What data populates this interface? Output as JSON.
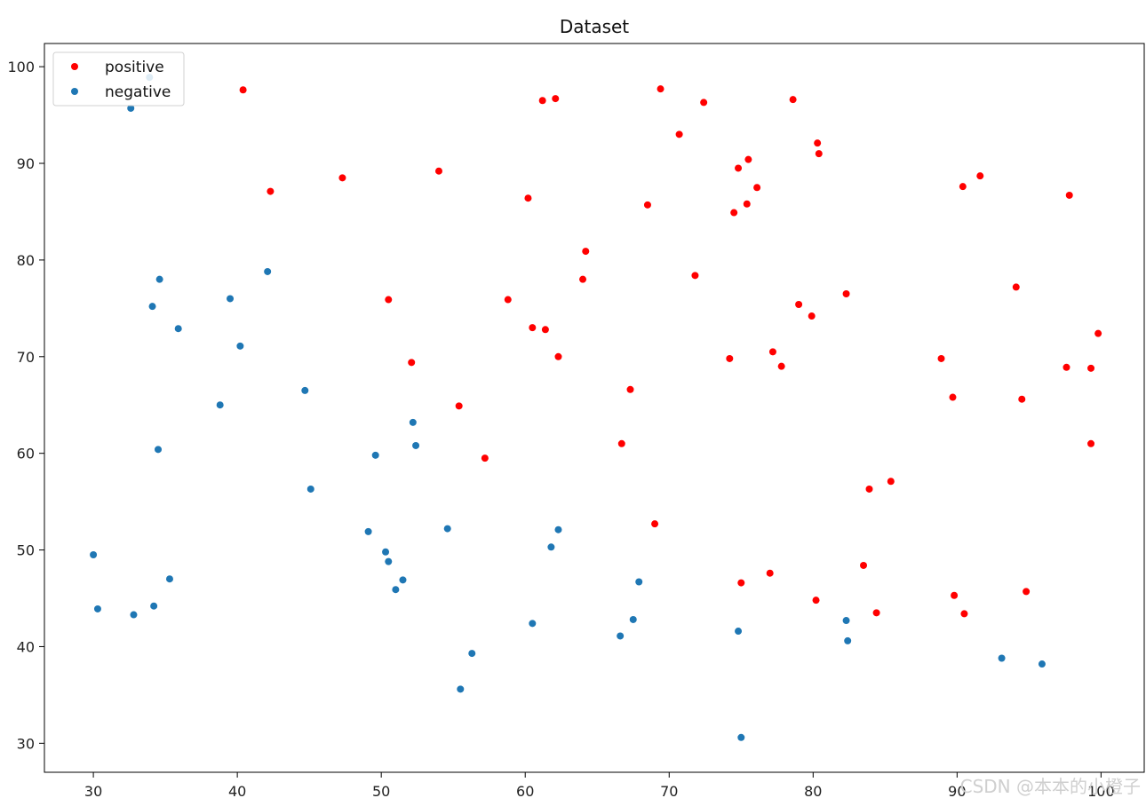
{
  "chart_data": {
    "type": "scatter",
    "title": "Dataset",
    "xlabel": "",
    "ylabel": "",
    "xlim": [
      26.6,
      103.0
    ],
    "ylim": [
      27.0,
      102.4
    ],
    "xticks": [
      30,
      40,
      50,
      60,
      70,
      80,
      90,
      100
    ],
    "yticks": [
      30,
      40,
      50,
      60,
      70,
      80,
      90,
      100
    ],
    "grid": false,
    "legend": {
      "position": "top-left",
      "entries": [
        "positive",
        "negative"
      ]
    },
    "series": [
      {
        "name": "positive",
        "color": "#ff0000",
        "points": [
          [
            40.4,
            97.6
          ],
          [
            42.3,
            87.1
          ],
          [
            47.3,
            88.5
          ],
          [
            50.5,
            75.9
          ],
          [
            52.1,
            69.4
          ],
          [
            54.0,
            89.2
          ],
          [
            55.4,
            64.9
          ],
          [
            57.2,
            59.5
          ],
          [
            58.8,
            75.9
          ],
          [
            60.2,
            86.4
          ],
          [
            60.5,
            73.0
          ],
          [
            61.2,
            96.5
          ],
          [
            61.4,
            72.8
          ],
          [
            62.1,
            96.7
          ],
          [
            62.3,
            70.0
          ],
          [
            64.0,
            78.0
          ],
          [
            64.2,
            80.9
          ],
          [
            66.7,
            61.0
          ],
          [
            67.3,
            66.6
          ],
          [
            68.5,
            85.7
          ],
          [
            69.0,
            52.7
          ],
          [
            69.4,
            97.7
          ],
          [
            70.7,
            93.0
          ],
          [
            71.8,
            78.4
          ],
          [
            72.4,
            96.3
          ],
          [
            74.2,
            69.8
          ],
          [
            74.5,
            84.9
          ],
          [
            74.8,
            89.5
          ],
          [
            75.0,
            46.6
          ],
          [
            75.4,
            85.8
          ],
          [
            75.5,
            90.4
          ],
          [
            76.1,
            87.5
          ],
          [
            77.0,
            47.6
          ],
          [
            77.2,
            70.5
          ],
          [
            77.8,
            69.0
          ],
          [
            78.6,
            96.6
          ],
          [
            79.0,
            75.4
          ],
          [
            79.9,
            74.2
          ],
          [
            80.2,
            44.8
          ],
          [
            80.3,
            92.1
          ],
          [
            80.4,
            91.0
          ],
          [
            82.3,
            76.5
          ],
          [
            83.5,
            48.4
          ],
          [
            83.9,
            56.3
          ],
          [
            84.4,
            43.5
          ],
          [
            85.4,
            57.1
          ],
          [
            88.9,
            69.8
          ],
          [
            89.7,
            65.8
          ],
          [
            89.8,
            45.3
          ],
          [
            90.4,
            87.6
          ],
          [
            90.5,
            43.4
          ],
          [
            91.6,
            88.7
          ],
          [
            94.1,
            77.2
          ],
          [
            94.5,
            65.6
          ],
          [
            94.8,
            45.7
          ],
          [
            97.6,
            68.9
          ],
          [
            97.8,
            86.7
          ],
          [
            99.3,
            61.0
          ],
          [
            99.3,
            68.8
          ],
          [
            99.8,
            72.4
          ]
        ]
      },
      {
        "name": "negative",
        "color": "#1f77b4",
        "points": [
          [
            30.0,
            49.5
          ],
          [
            30.3,
            43.9
          ],
          [
            32.6,
            95.7
          ],
          [
            32.8,
            43.3
          ],
          [
            33.9,
            98.9
          ],
          [
            34.1,
            75.2
          ],
          [
            34.2,
            44.2
          ],
          [
            34.5,
            60.4
          ],
          [
            34.6,
            78.0
          ],
          [
            35.3,
            47.0
          ],
          [
            35.9,
            72.9
          ],
          [
            38.8,
            65.0
          ],
          [
            39.5,
            76.0
          ],
          [
            40.2,
            71.1
          ],
          [
            42.1,
            78.8
          ],
          [
            44.7,
            66.5
          ],
          [
            45.1,
            56.3
          ],
          [
            49.1,
            51.9
          ],
          [
            49.6,
            59.8
          ],
          [
            50.3,
            49.8
          ],
          [
            50.5,
            48.8
          ],
          [
            51.0,
            45.9
          ],
          [
            51.5,
            46.9
          ],
          [
            52.2,
            63.2
          ],
          [
            52.4,
            60.8
          ],
          [
            54.6,
            52.2
          ],
          [
            55.5,
            35.6
          ],
          [
            56.3,
            39.3
          ],
          [
            60.5,
            42.4
          ],
          [
            61.8,
            50.3
          ],
          [
            62.3,
            52.1
          ],
          [
            66.6,
            41.1
          ],
          [
            67.5,
            42.8
          ],
          [
            67.9,
            46.7
          ],
          [
            74.8,
            41.6
          ],
          [
            75.0,
            30.6
          ],
          [
            82.3,
            42.7
          ],
          [
            82.4,
            40.6
          ],
          [
            93.1,
            38.8
          ],
          [
            95.9,
            38.2
          ]
        ]
      }
    ]
  },
  "watermark": "CSDN @本本的小橙子"
}
